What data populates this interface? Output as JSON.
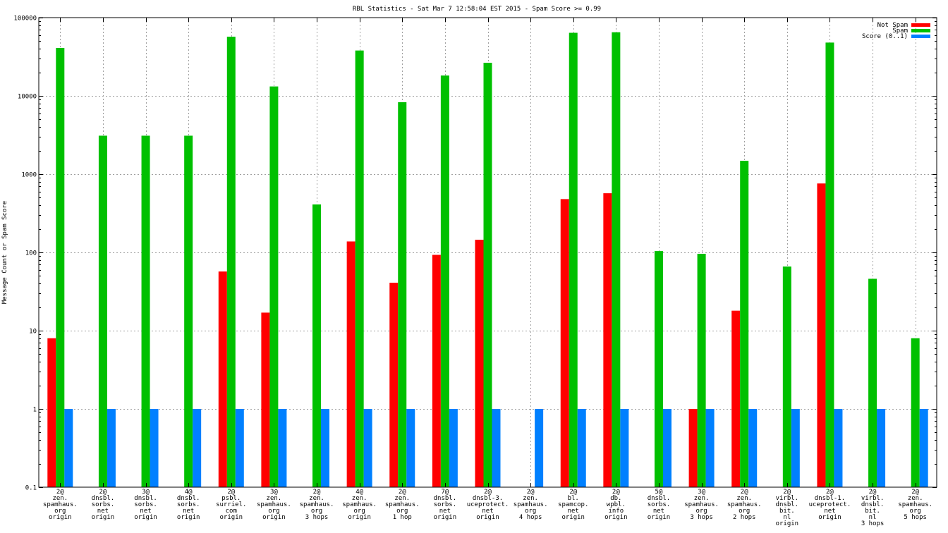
{
  "chart_data": {
    "type": "bar",
    "title": "RBL Statistics - Sat Mar  7 12:58:04 EST 2015 - Spam Score >= 0.99",
    "xlabel": "",
    "ylabel": "Message Count or Spam Score",
    "yscale": "log",
    "ylim": [
      0.1,
      100000
    ],
    "y_ticks": [
      {
        "value": 0.1,
        "label": "0.1"
      },
      {
        "value": 1,
        "label": "1"
      },
      {
        "value": 10,
        "label": "10"
      },
      {
        "value": 100,
        "label": "100"
      },
      {
        "value": 1000,
        "label": "1000"
      },
      {
        "value": 10000,
        "label": "10000"
      },
      {
        "value": 100000,
        "label": "100000"
      }
    ],
    "grid": true,
    "legend_position": "top-right",
    "categories": [
      [
        "2@",
        "zen.",
        "spamhaus.",
        "org",
        "origin"
      ],
      [
        "2@",
        "dnsbl.",
        "sorbs.",
        "net",
        "origin"
      ],
      [
        "3@",
        "dnsbl.",
        "sorbs.",
        "net",
        "origin"
      ],
      [
        "4@",
        "dnsbl.",
        "sorbs.",
        "net",
        "origin"
      ],
      [
        "2@",
        "psbl.",
        "surriel.",
        "com",
        "origin"
      ],
      [
        "3@",
        "zen.",
        "spamhaus.",
        "org",
        "origin"
      ],
      [
        "2@",
        "zen.",
        "spamhaus.",
        "org",
        "3 hops"
      ],
      [
        "4@",
        "zen.",
        "spamhaus.",
        "org",
        "origin"
      ],
      [
        "2@",
        "zen.",
        "spamhaus.",
        "org",
        "1 hop"
      ],
      [
        "7@",
        "dnsbl.",
        "sorbs.",
        "net",
        "origin"
      ],
      [
        "2@",
        "dnsbl-3.",
        "uceprotect.",
        "net",
        "origin"
      ],
      [
        "2@",
        "zen.",
        "spamhaus.",
        "org",
        "4 hops"
      ],
      [
        "2@",
        "bl.",
        "spamcop.",
        "net",
        "origin"
      ],
      [
        "2@",
        "db.",
        "wpbl.",
        "info",
        "origin"
      ],
      [
        "5@",
        "dnsbl.",
        "sorbs.",
        "net",
        "origin"
      ],
      [
        "3@",
        "zen.",
        "spamhaus.",
        "org",
        "3 hops"
      ],
      [
        "2@",
        "zen.",
        "spamhaus.",
        "org",
        "2 hops"
      ],
      [
        "2@",
        "virbl.",
        "dnsbl.",
        "bit.",
        "nl",
        "origin"
      ],
      [
        "2@",
        "dnsbl-1.",
        "uceprotect.",
        "net",
        "origin"
      ],
      [
        "2@",
        "virbl.",
        "dnsbl.",
        "bit.",
        "nl",
        "3 hops"
      ],
      [
        "2@",
        "zen.",
        "spamhaus.",
        "org",
        "5 hops"
      ]
    ],
    "series": [
      {
        "name": "Not Spam",
        "color": "#ff0000",
        "values": [
          8,
          null,
          null,
          null,
          57,
          17,
          null,
          138,
          41,
          93,
          145,
          null,
          480,
          570,
          null,
          1,
          18,
          null,
          760,
          null,
          null
        ]
      },
      {
        "name": "Spam",
        "color": "#00c000",
        "values": [
          41000,
          3100,
          3100,
          3100,
          57000,
          13200,
          410,
          38000,
          8300,
          18200,
          26500,
          null,
          64000,
          65000,
          104,
          96,
          1480,
          66,
          48000,
          46,
          8
        ]
      },
      {
        "name": "Score (0..1)",
        "color": "#0080ff",
        "values": [
          1,
          1,
          1,
          1,
          1,
          1,
          1,
          1,
          1,
          1,
          1,
          1,
          1,
          1,
          1,
          1,
          1,
          1,
          1,
          1,
          1
        ]
      }
    ]
  }
}
